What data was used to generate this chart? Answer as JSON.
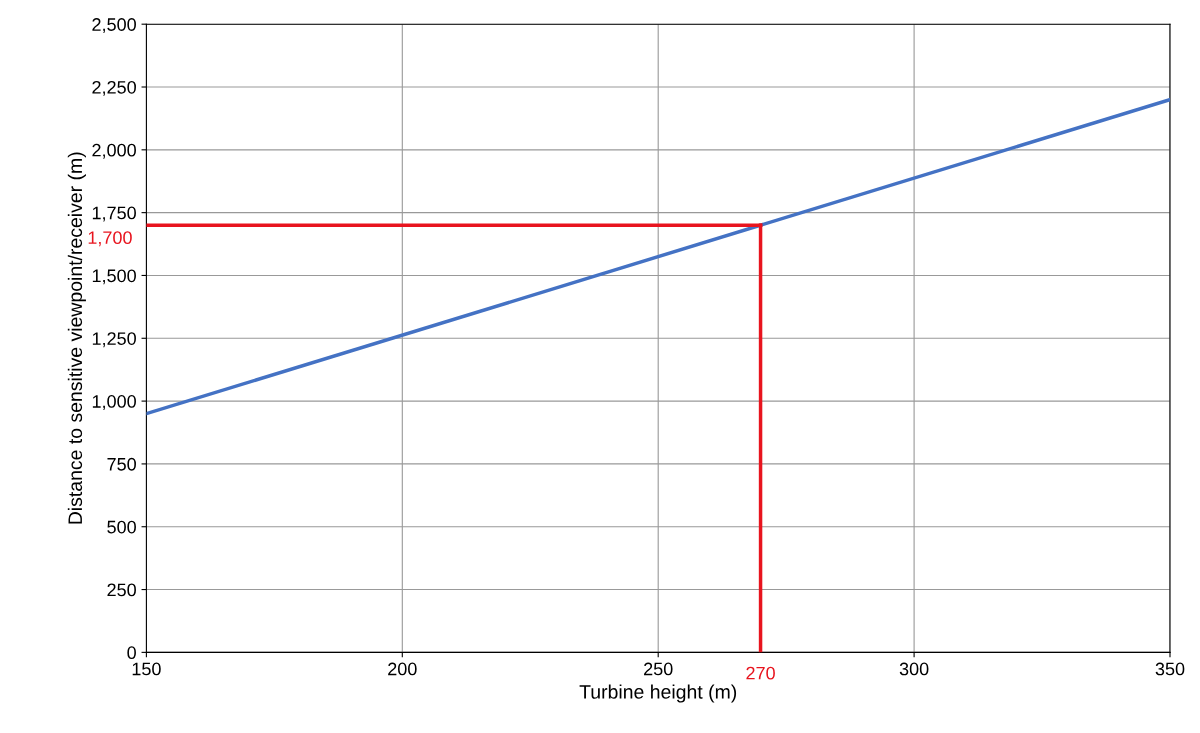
{
  "chart_data": {
    "type": "line",
    "xlabel": "Turbine height (m)",
    "ylabel": "Distance to sensitive viewpoint/receiver (m)",
    "x": [
      150,
      350
    ],
    "series": [
      {
        "color": "#4472c4",
        "values": [
          950,
          2200
        ]
      }
    ],
    "xlim": [
      150,
      350
    ],
    "xticks": [
      150,
      200,
      250,
      300,
      350
    ],
    "ylim": [
      0,
      2500
    ],
    "yticks": [
      0,
      250,
      500,
      750,
      {
        "value": 1000,
        "label": "1,000"
      },
      {
        "value": 1250,
        "label": "1,250"
      },
      {
        "value": 1500,
        "label": "1,500"
      },
      {
        "value": 1750,
        "label": "1,750"
      },
      {
        "value": 2000,
        "label": "2,000"
      },
      {
        "value": 2250,
        "label": "2,250"
      },
      {
        "value": 2500,
        "label": "2,500"
      }
    ],
    "ref_lines": [
      {
        "axis": "y",
        "value": 1700,
        "label": "1,700",
        "color": "#e8141e"
      },
      {
        "axis": "x",
        "value": 270,
        "label": "270",
        "color": "#e8141e"
      }
    ],
    "grid": true,
    "marker": "none",
    "line_style": "solid"
  }
}
